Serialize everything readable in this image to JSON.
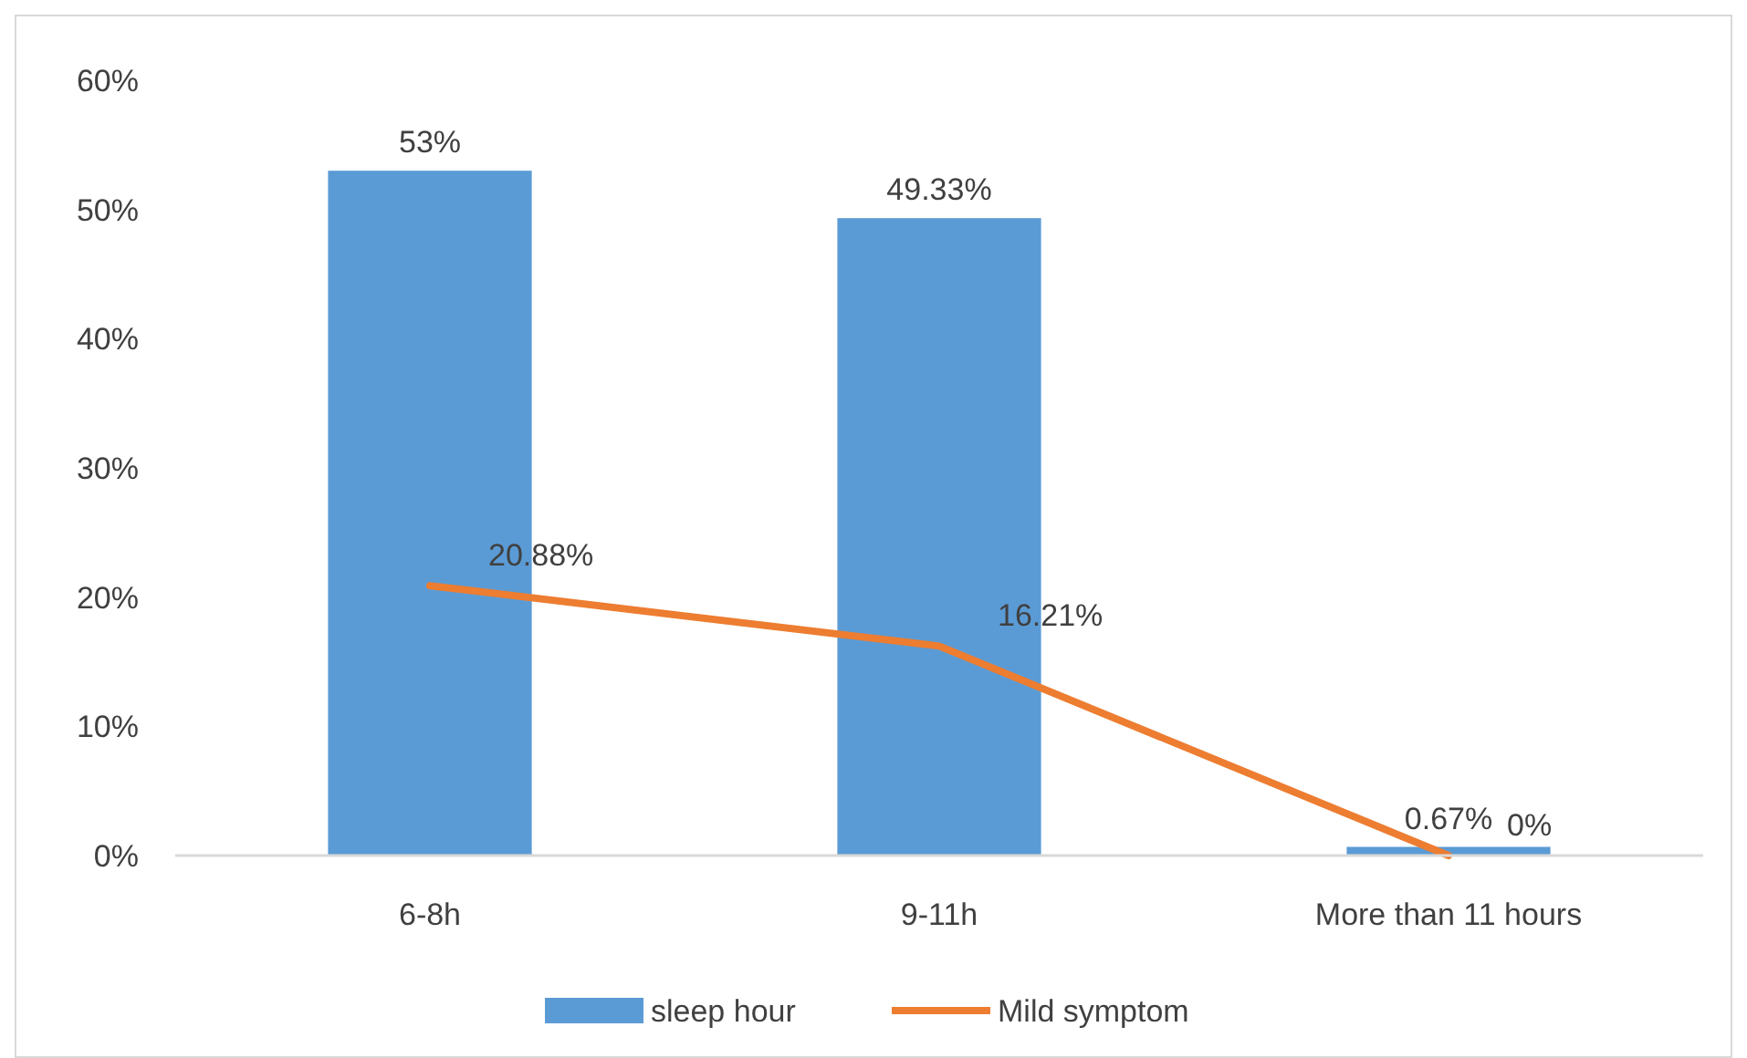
{
  "chart_data": {
    "type": "bar",
    "categories": [
      "6-8h",
      "9-11h",
      "More than 11 hours"
    ],
    "series": [
      {
        "name": "sleep hour",
        "color": "#5b9bd5",
        "values": [
          53,
          49.33,
          0.67
        ],
        "value_labels": [
          "53%",
          "49.33%",
          "0.67%"
        ]
      },
      {
        "name": "Mild symptom",
        "type": "line",
        "color": "#ed7d31",
        "values": [
          20.88,
          16.21,
          0
        ],
        "value_labels": [
          "20.88%",
          "16.21%",
          "0%"
        ]
      }
    ],
    "ylim": [
      0,
      60
    ],
    "yticks": [
      {
        "value": 0,
        "label": "0%"
      },
      {
        "value": 10,
        "label": "10%"
      },
      {
        "value": 20,
        "label": "20%"
      },
      {
        "value": 30,
        "label": "30%"
      },
      {
        "value": 40,
        "label": "40%"
      },
      {
        "value": 50,
        "label": "50%"
      },
      {
        "value": 60,
        "label": "60%"
      }
    ],
    "grid": false,
    "legend": "bottom",
    "marker": "none",
    "line_style": "solid"
  }
}
